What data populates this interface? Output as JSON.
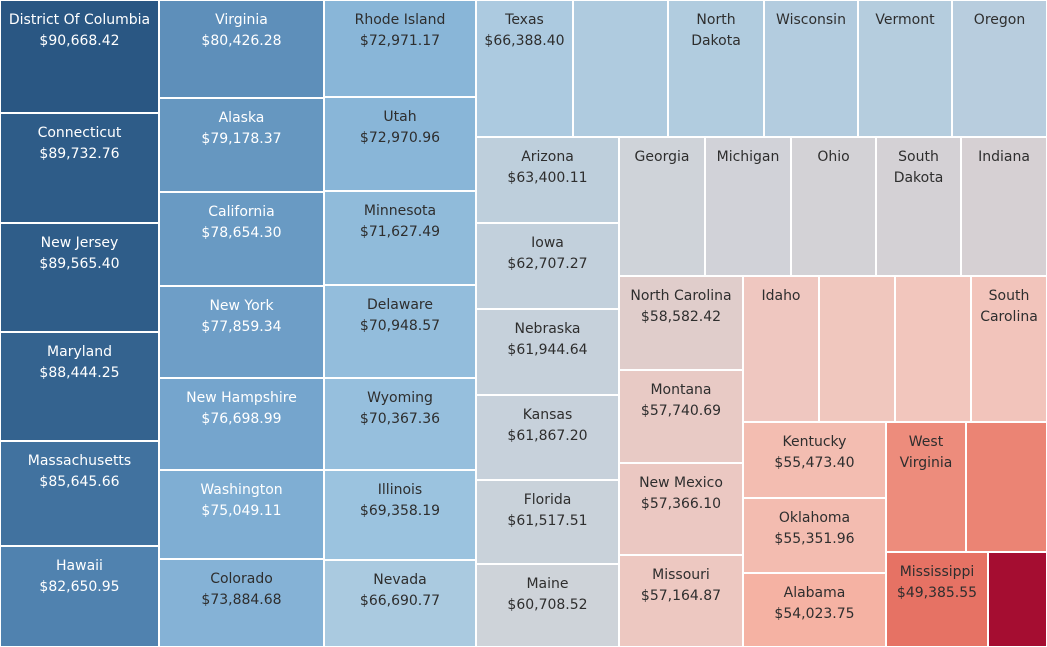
{
  "chart_data": {
    "type": "treemap",
    "color_scale": {
      "low": "#a50d31",
      "mid": "#cfd3d9",
      "high": "#2a5783"
    },
    "items": [
      {
        "name": "District Of Columbia",
        "value": 90668.42,
        "label": "$90,668.42"
      },
      {
        "name": "Connecticut",
        "value": 89732.76,
        "label": "$89,732.76"
      },
      {
        "name": "New Jersey",
        "value": 89565.4,
        "label": "$89,565.40"
      },
      {
        "name": "Maryland",
        "value": 88444.25,
        "label": "$88,444.25"
      },
      {
        "name": "Massachusetts",
        "value": 85645.66,
        "label": "$85,645.66"
      },
      {
        "name": "Hawaii",
        "value": 82650.95,
        "label": "$82,650.95"
      },
      {
        "name": "Virginia",
        "value": 80426.28,
        "label": "$80,426.28"
      },
      {
        "name": "Alaska",
        "value": 79178.37,
        "label": "$79,178.37"
      },
      {
        "name": "California",
        "value": 78654.3,
        "label": "$78,654.30"
      },
      {
        "name": "New York",
        "value": 77859.34,
        "label": "$77,859.34"
      },
      {
        "name": "New Hampshire",
        "value": 76698.99,
        "label": "$76,698.99"
      },
      {
        "name": "Washington",
        "value": 75049.11,
        "label": "$75,049.11"
      },
      {
        "name": "Colorado",
        "value": 73884.68,
        "label": "$73,884.68"
      },
      {
        "name": "Rhode Island",
        "value": 72971.17,
        "label": "$72,971.17"
      },
      {
        "name": "Utah",
        "value": 72970.96,
        "label": "$72,970.96"
      },
      {
        "name": "Minnesota",
        "value": 71627.49,
        "label": "$71,627.49"
      },
      {
        "name": "Delaware",
        "value": 70948.57,
        "label": "$70,948.57"
      },
      {
        "name": "Wyoming",
        "value": 70367.36,
        "label": "$70,367.36"
      },
      {
        "name": "Illinois",
        "value": 69358.19,
        "label": "$69,358.19"
      },
      {
        "name": "Nevada",
        "value": 66690.77,
        "label": "$66,690.77"
      },
      {
        "name": "Texas",
        "value": 66388.4,
        "label": "$66,388.40"
      },
      {
        "name": "",
        "value": 65900,
        "label": ""
      },
      {
        "name": "North Dakota",
        "value": 65600,
        "label": ""
      },
      {
        "name": "Wisconsin",
        "value": 65200,
        "label": ""
      },
      {
        "name": "Vermont",
        "value": 64800,
        "label": ""
      },
      {
        "name": "Oregon",
        "value": 64400,
        "label": ""
      },
      {
        "name": "Arizona",
        "value": 63400.11,
        "label": "$63,400.11"
      },
      {
        "name": "Iowa",
        "value": 62707.27,
        "label": "$62,707.27"
      },
      {
        "name": "Nebraska",
        "value": 61944.64,
        "label": "$61,944.64"
      },
      {
        "name": "Kansas",
        "value": 61867.2,
        "label": "$61,867.20"
      },
      {
        "name": "Florida",
        "value": 61517.51,
        "label": "$61,517.51"
      },
      {
        "name": "Maine",
        "value": 60708.52,
        "label": "$60,708.52"
      },
      {
        "name": "Georgia",
        "value": 60500,
        "label": ""
      },
      {
        "name": "Michigan",
        "value": 60300,
        "label": ""
      },
      {
        "name": "Ohio",
        "value": 60100,
        "label": ""
      },
      {
        "name": "South Dakota",
        "value": 59900,
        "label": ""
      },
      {
        "name": "Indiana",
        "value": 59700,
        "label": ""
      },
      {
        "name": "North Carolina",
        "value": 58582.42,
        "label": "$58,582.42"
      },
      {
        "name": "Montana",
        "value": 57740.69,
        "label": "$57,740.69"
      },
      {
        "name": "New Mexico",
        "value": 57366.1,
        "label": "$57,366.10"
      },
      {
        "name": "Missouri",
        "value": 57164.87,
        "label": "$57,164.87"
      },
      {
        "name": "Idaho",
        "value": 57000,
        "label": ""
      },
      {
        "name": "",
        "value": 56800,
        "label": ""
      },
      {
        "name": "",
        "value": 56600,
        "label": ""
      },
      {
        "name": "South Carolina",
        "value": 56400,
        "label": ""
      },
      {
        "name": "Kentucky",
        "value": 55473.4,
        "label": "$55,473.40"
      },
      {
        "name": "Oklahoma",
        "value": 55351.96,
        "label": "$55,351.96"
      },
      {
        "name": "Alabama",
        "value": 54023.75,
        "label": "$54,023.75"
      },
      {
        "name": "West Virginia",
        "value": 51000,
        "label": ""
      },
      {
        "name": "",
        "value": 50500,
        "label": ""
      },
      {
        "name": "Mississippi",
        "value": 49385.55,
        "label": "$49,385.55"
      },
      {
        "name": "",
        "value": 45000,
        "label": ""
      }
    ]
  }
}
